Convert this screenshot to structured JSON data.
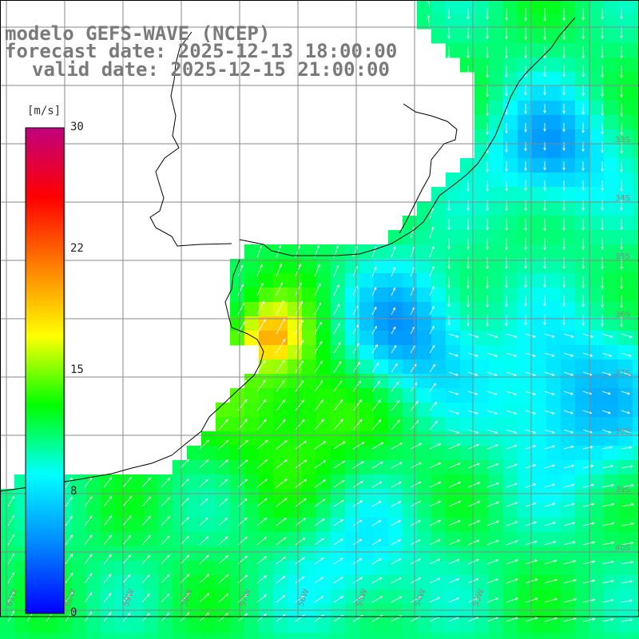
{
  "title": {
    "model": "modelo GEFS-WAVE (NCEP)",
    "forecast": "forecast date: 2025-12-13 18:00:00",
    "valid": "valid date: 2025-12-15 21:00:00"
  },
  "colorbar": {
    "units": "[m/s]",
    "ticks": [
      "30",
      "22",
      "15",
      "8",
      "0"
    ],
    "min": 0,
    "max": 30,
    "colors": [
      "#0000ff",
      "#0088ff",
      "#00ffff",
      "#00ff00",
      "#ffff00",
      "#ff8000",
      "#ff0000",
      "#c0007e"
    ]
  },
  "map": {
    "land_color": "#ffffff",
    "grid_color": "#888888",
    "arrow_color": "#ffffff",
    "lat_labels": [
      "33S",
      "34S",
      "35S",
      "36S",
      "37S",
      "38S",
      "39S",
      "40S"
    ],
    "lon_labels": [
      "61W",
      "60W",
      "59W",
      "58W",
      "57W",
      "56W",
      "55W",
      "54W",
      "53W"
    ]
  }
}
